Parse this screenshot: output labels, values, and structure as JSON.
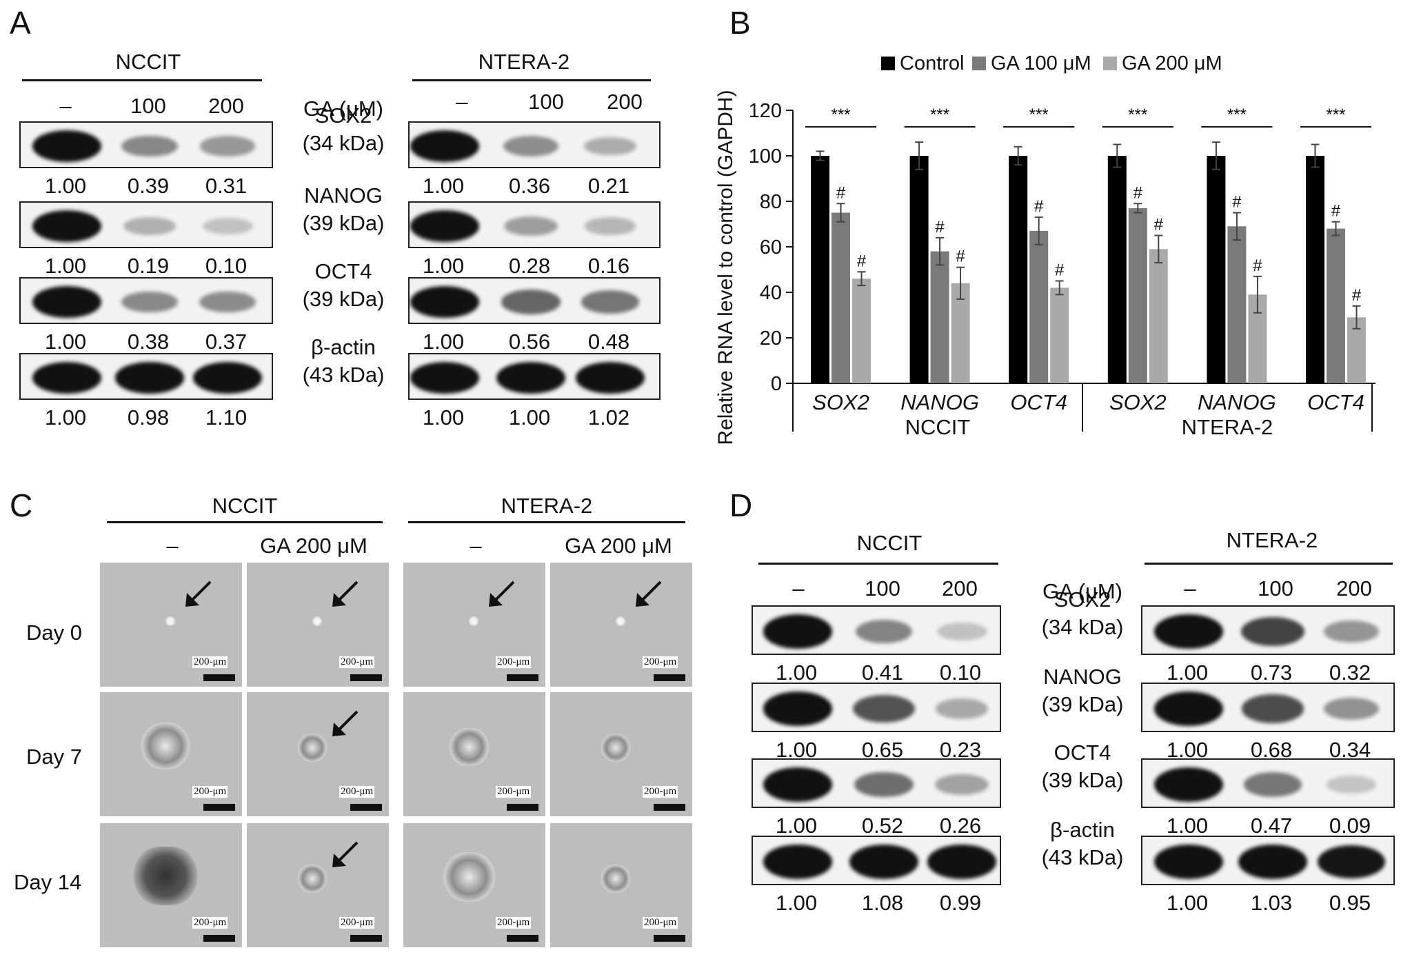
{
  "panel_labels": [
    "A",
    "B",
    "C",
    "D"
  ],
  "panelA": {
    "left_title": "NCCIT",
    "right_title": "NTERA-2",
    "doses": [
      "–",
      "100",
      "200"
    ],
    "treatment_label": "GA (μM)",
    "rows": [
      {
        "protein": "SOX2",
        "kda": "(34 kDa)",
        "left": [
          "1.00",
          "0.39",
          "0.31"
        ],
        "right": [
          "1.00",
          "0.36",
          "0.21"
        ]
      },
      {
        "protein": "NANOG",
        "kda": "(39 kDa)",
        "left": [
          "1.00",
          "0.19",
          "0.10"
        ],
        "right": [
          "1.00",
          "0.28",
          "0.16"
        ]
      },
      {
        "protein": "OCT4",
        "kda": "(39 kDa)",
        "left": [
          "1.00",
          "0.38",
          "0.37"
        ],
        "right": [
          "1.00",
          "0.56",
          "0.48"
        ]
      },
      {
        "protein": "β-actin",
        "kda": "(43 kDa)",
        "left": [
          "1.00",
          "0.98",
          "1.10"
        ],
        "right": [
          "1.00",
          "1.00",
          "1.02"
        ]
      }
    ]
  },
  "panelB": {
    "chart_data": {
      "type": "bar",
      "ylabel": "Relative RNA level to control (GAPDH)",
      "ylim": [
        0,
        120
      ],
      "yticks": [
        0,
        20,
        40,
        60,
        80,
        100,
        120
      ],
      "legend": [
        "Control",
        "GA 100 μM",
        "GA 200 μM"
      ],
      "colors": [
        "#000000",
        "#7a7a7a",
        "#a9a9a9"
      ],
      "groups": [
        "NCCIT",
        "NTERA-2"
      ],
      "categories": [
        "SOX2",
        "NANOG",
        "OCT4",
        "SOX2",
        "NANOG",
        "OCT4"
      ],
      "series": [
        {
          "name": "Control",
          "values": [
            100,
            100,
            100,
            100,
            100,
            100
          ],
          "err": [
            2,
            6,
            4,
            5,
            6,
            5
          ]
        },
        {
          "name": "GA 100 μM",
          "values": [
            75,
            58,
            67,
            77,
            69,
            68
          ],
          "err": [
            4,
            6,
            6,
            2,
            6,
            3
          ]
        },
        {
          "name": "GA 200 μM",
          "values": [
            46,
            44,
            42,
            59,
            39,
            29
          ],
          "err": [
            3,
            7,
            3,
            6,
            8,
            5
          ]
        }
      ],
      "significance": "***",
      "hash": "#"
    }
  },
  "panelC": {
    "left_title": "NCCIT",
    "right_title": "NTERA-2",
    "col_labels": [
      "–",
      "GA 200 μM",
      "–",
      "GA 200 μM"
    ],
    "row_labels": [
      "Day 0",
      "Day 7",
      "Day 14"
    ],
    "scale": "200-μm"
  },
  "panelD": {
    "left_title": "NCCIT",
    "right_title": "NTERA-2",
    "doses": [
      "–",
      "100",
      "200"
    ],
    "treatment_label": "GA (μM)",
    "rows": [
      {
        "protein": "SOX2",
        "kda": "(34 kDa)",
        "left": [
          "1.00",
          "0.41",
          "0.10"
        ],
        "right": [
          "1.00",
          "0.73",
          "0.32"
        ]
      },
      {
        "protein": "NANOG",
        "kda": "(39 kDa)",
        "left": [
          "1.00",
          "0.65",
          "0.23"
        ],
        "right": [
          "1.00",
          "0.68",
          "0.34"
        ]
      },
      {
        "protein": "OCT4",
        "kda": "(39 kDa)",
        "left": [
          "1.00",
          "0.52",
          "0.26"
        ],
        "right": [
          "1.00",
          "0.47",
          "0.09"
        ]
      },
      {
        "protein": "β-actin",
        "kda": "(43 kDa)",
        "left": [
          "1.00",
          "1.08",
          "0.99"
        ],
        "right": [
          "1.00",
          "1.03",
          "0.95"
        ]
      }
    ]
  }
}
